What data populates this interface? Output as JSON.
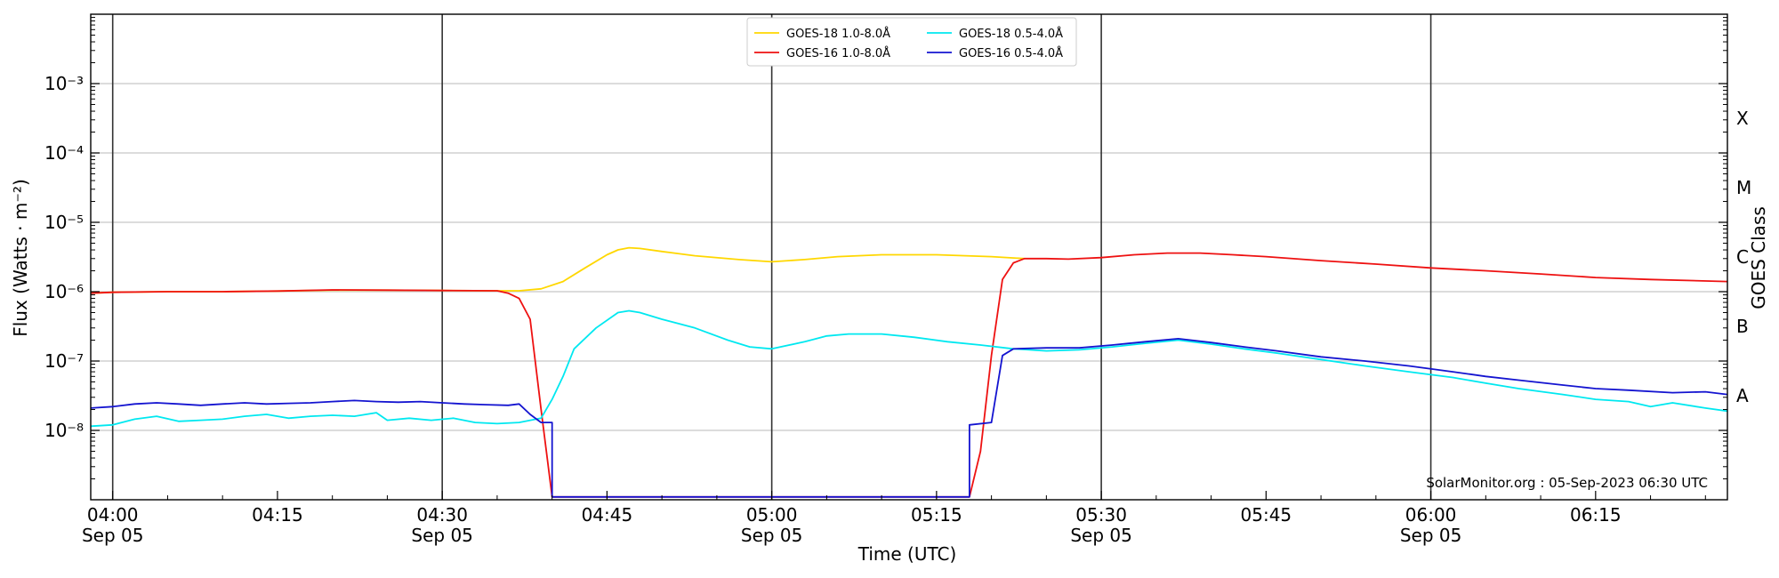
{
  "chart_data": {
    "type": "line",
    "xlabel": "Time (UTC)",
    "ylabel": "Flux (Watts · m⁻²)",
    "right_axis_label": "GOES Class",
    "y_scale": "log",
    "ylim": [
      1e-09,
      0.01
    ],
    "xlim": [
      "03:58",
      "06:27"
    ],
    "grid": "horizontal",
    "legend_position": "top-center",
    "y_ticks": [
      {
        "value": 1e-08,
        "label": "10⁻⁸"
      },
      {
        "value": 1e-07,
        "label": "10⁻⁷"
      },
      {
        "value": 1e-06,
        "label": "10⁻⁶"
      },
      {
        "value": 1e-05,
        "label": "10⁻⁵"
      },
      {
        "value": 0.0001,
        "label": "10⁻⁴"
      },
      {
        "value": 0.001,
        "label": "10⁻³"
      }
    ],
    "x_ticks": [
      {
        "time": "04:00",
        "label": "04:00",
        "date": "Sep 05"
      },
      {
        "time": "04:15",
        "label": "04:15",
        "date": ""
      },
      {
        "time": "04:30",
        "label": "04:30",
        "date": "Sep 05"
      },
      {
        "time": "04:45",
        "label": "04:45",
        "date": ""
      },
      {
        "time": "05:00",
        "label": "05:00",
        "date": "Sep 05"
      },
      {
        "time": "05:15",
        "label": "05:15",
        "date": ""
      },
      {
        "time": "05:30",
        "label": "05:30",
        "date": "Sep 05"
      },
      {
        "time": "05:45",
        "label": "05:45",
        "date": ""
      },
      {
        "time": "06:00",
        "label": "06:00",
        "date": "Sep 05"
      },
      {
        "time": "06:15",
        "label": "06:15",
        "date": ""
      }
    ],
    "vertical_lines": [
      "04:00",
      "04:30",
      "05:00",
      "05:30",
      "06:00"
    ],
    "classes": [
      {
        "label": "X",
        "value": 0.000316
      },
      {
        "label": "M",
        "value": 3.16e-05
      },
      {
        "label": "C",
        "value": 3.16e-06
      },
      {
        "label": "B",
        "value": 3.16e-07
      },
      {
        "label": "A",
        "value": 3.16e-08
      }
    ],
    "series": [
      {
        "name": "GOES-18 1.0-8.0Å",
        "color": "#ffd700",
        "points": [
          [
            "03:58",
            9.5e-07
          ],
          [
            "04:00",
            9.8e-07
          ],
          [
            "04:05",
            1e-06
          ],
          [
            "04:10",
            1e-06
          ],
          [
            "04:15",
            1.02e-06
          ],
          [
            "04:20",
            1.05e-06
          ],
          [
            "04:25",
            1.05e-06
          ],
          [
            "04:30",
            1.04e-06
          ],
          [
            "04:35",
            1.03e-06
          ],
          [
            "04:37",
            1.03e-06
          ],
          [
            "04:39",
            1.1e-06
          ],
          [
            "04:41",
            1.4e-06
          ],
          [
            "04:43",
            2.2e-06
          ],
          [
            "04:45",
            3.4e-06
          ],
          [
            "04:46",
            4e-06
          ],
          [
            "04:47",
            4.3e-06
          ],
          [
            "04:48",
            4.2e-06
          ],
          [
            "04:50",
            3.8e-06
          ],
          [
            "04:53",
            3.3e-06
          ],
          [
            "04:57",
            2.9e-06
          ],
          [
            "05:00",
            2.7e-06
          ],
          [
            "05:03",
            2.9e-06
          ],
          [
            "05:06",
            3.2e-06
          ],
          [
            "05:10",
            3.4e-06
          ],
          [
            "05:15",
            3.4e-06
          ],
          [
            "05:20",
            3.2e-06
          ],
          [
            "05:23",
            3e-06
          ]
        ]
      },
      {
        "name": "GOES-16 1.0-8.0Å",
        "color": "#ee1111",
        "points": [
          [
            "03:58",
            9.5e-07
          ],
          [
            "04:00",
            9.8e-07
          ],
          [
            "04:05",
            1e-06
          ],
          [
            "04:10",
            1e-06
          ],
          [
            "04:15",
            1.02e-06
          ],
          [
            "04:20",
            1.06e-06
          ],
          [
            "04:25",
            1.05e-06
          ],
          [
            "04:30",
            1.04e-06
          ],
          [
            "04:35",
            1.03e-06
          ],
          [
            "04:36",
            9.5e-07
          ],
          [
            "04:37",
            8e-07
          ],
          [
            "04:38",
            4e-07
          ],
          [
            "04:39",
            2e-08
          ],
          [
            "04:40",
            1.1e-09
          ],
          [
            "05:18",
            1.1e-09
          ],
          [
            "05:19",
            5e-09
          ],
          [
            "05:20",
            1.2e-07
          ],
          [
            "05:21",
            1.5e-06
          ],
          [
            "05:22",
            2.6e-06
          ],
          [
            "05:23",
            3e-06
          ],
          [
            "05:25",
            3e-06
          ],
          [
            "05:27",
            2.95e-06
          ],
          [
            "05:30",
            3.1e-06
          ],
          [
            "05:33",
            3.4e-06
          ],
          [
            "05:36",
            3.6e-06
          ],
          [
            "05:39",
            3.6e-06
          ],
          [
            "05:42",
            3.4e-06
          ],
          [
            "05:45",
            3.2e-06
          ],
          [
            "05:50",
            2.8e-06
          ],
          [
            "05:55",
            2.5e-06
          ],
          [
            "06:00",
            2.2e-06
          ],
          [
            "06:05",
            2e-06
          ],
          [
            "06:10",
            1.8e-06
          ],
          [
            "06:15",
            1.6e-06
          ],
          [
            "06:20",
            1.5e-06
          ],
          [
            "06:27",
            1.4e-06
          ]
        ]
      },
      {
        "name": "GOES-18 0.5-4.0Å",
        "color": "#00e8f0",
        "points": [
          [
            "03:58",
            1.15e-08
          ],
          [
            "04:00",
            1.2e-08
          ],
          [
            "04:02",
            1.45e-08
          ],
          [
            "04:04",
            1.6e-08
          ],
          [
            "04:06",
            1.35e-08
          ],
          [
            "04:08",
            1.4e-08
          ],
          [
            "04:10",
            1.45e-08
          ],
          [
            "04:12",
            1.6e-08
          ],
          [
            "04:14",
            1.7e-08
          ],
          [
            "04:16",
            1.5e-08
          ],
          [
            "04:18",
            1.6e-08
          ],
          [
            "04:20",
            1.65e-08
          ],
          [
            "04:22",
            1.6e-08
          ],
          [
            "04:24",
            1.8e-08
          ],
          [
            "04:25",
            1.4e-08
          ],
          [
            "04:27",
            1.5e-08
          ],
          [
            "04:29",
            1.4e-08
          ],
          [
            "04:31",
            1.5e-08
          ],
          [
            "04:33",
            1.3e-08
          ],
          [
            "04:35",
            1.25e-08
          ],
          [
            "04:37",
            1.3e-08
          ],
          [
            "04:39",
            1.5e-08
          ],
          [
            "04:40",
            2.8e-08
          ],
          [
            "04:41",
            6e-08
          ],
          [
            "04:42",
            1.5e-07
          ],
          [
            "04:44",
            3e-07
          ],
          [
            "04:46",
            5e-07
          ],
          [
            "04:47",
            5.3e-07
          ],
          [
            "04:48",
            5e-07
          ],
          [
            "04:50",
            4e-07
          ],
          [
            "04:53",
            3e-07
          ],
          [
            "04:56",
            2e-07
          ],
          [
            "04:58",
            1.6e-07
          ],
          [
            "05:00",
            1.5e-07
          ],
          [
            "05:03",
            1.9e-07
          ],
          [
            "05:05",
            2.3e-07
          ],
          [
            "05:07",
            2.45e-07
          ],
          [
            "05:10",
            2.45e-07
          ],
          [
            "05:13",
            2.2e-07
          ],
          [
            "05:16",
            1.9e-07
          ],
          [
            "05:19",
            1.7e-07
          ],
          [
            "05:22",
            1.5e-07
          ],
          [
            "05:25",
            1.4e-07
          ],
          [
            "05:28",
            1.45e-07
          ],
          [
            "05:31",
            1.6e-07
          ],
          [
            "05:34",
            1.8e-07
          ],
          [
            "05:37",
            2e-07
          ],
          [
            "05:40",
            1.75e-07
          ],
          [
            "05:43",
            1.5e-07
          ],
          [
            "05:46",
            1.3e-07
          ],
          [
            "05:50",
            1.05e-07
          ],
          [
            "05:54",
            8.5e-08
          ],
          [
            "05:58",
            7e-08
          ],
          [
            "06:02",
            5.8e-08
          ],
          [
            "06:05",
            4.8e-08
          ],
          [
            "06:08",
            4e-08
          ],
          [
            "06:12",
            3.3e-08
          ],
          [
            "06:15",
            2.8e-08
          ],
          [
            "06:18",
            2.6e-08
          ],
          [
            "06:20",
            2.2e-08
          ],
          [
            "06:22",
            2.5e-08
          ],
          [
            "06:25",
            2.1e-08
          ],
          [
            "06:27",
            1.9e-08
          ]
        ]
      },
      {
        "name": "GOES-16 0.5-4.0Å",
        "color": "#1414d0",
        "points": [
          [
            "03:58",
            2.1e-08
          ],
          [
            "04:00",
            2.2e-08
          ],
          [
            "04:02",
            2.4e-08
          ],
          [
            "04:04",
            2.5e-08
          ],
          [
            "04:06",
            2.4e-08
          ],
          [
            "04:08",
            2.3e-08
          ],
          [
            "04:10",
            2.4e-08
          ],
          [
            "04:12",
            2.5e-08
          ],
          [
            "04:14",
            2.4e-08
          ],
          [
            "04:16",
            2.45e-08
          ],
          [
            "04:18",
            2.5e-08
          ],
          [
            "04:20",
            2.6e-08
          ],
          [
            "04:22",
            2.7e-08
          ],
          [
            "04:24",
            2.6e-08
          ],
          [
            "04:26",
            2.55e-08
          ],
          [
            "04:28",
            2.6e-08
          ],
          [
            "04:30",
            2.5e-08
          ],
          [
            "04:32",
            2.4e-08
          ],
          [
            "04:34",
            2.35e-08
          ],
          [
            "04:36",
            2.3e-08
          ],
          [
            "04:37",
            2.4e-08
          ],
          [
            "04:38",
            1.7e-08
          ],
          [
            "04:39",
            1.3e-08
          ],
          [
            "04:40",
            1.3e-08
          ],
          [
            "04:40",
            1.1e-09
          ],
          [
            "05:18",
            1.1e-09
          ],
          [
            "05:18",
            1.2e-08
          ],
          [
            "05:20",
            1.3e-08
          ],
          [
            "05:21",
            1.2e-07
          ],
          [
            "05:22",
            1.5e-07
          ],
          [
            "05:25",
            1.55e-07
          ],
          [
            "05:28",
            1.55e-07
          ],
          [
            "05:31",
            1.7e-07
          ],
          [
            "05:34",
            1.9e-07
          ],
          [
            "05:37",
            2.1e-07
          ],
          [
            "05:40",
            1.85e-07
          ],
          [
            "05:43",
            1.6e-07
          ],
          [
            "05:46",
            1.4e-07
          ],
          [
            "05:50",
            1.15e-07
          ],
          [
            "05:54",
            1e-07
          ],
          [
            "05:58",
            8.5e-08
          ],
          [
            "06:02",
            7e-08
          ],
          [
            "06:05",
            6e-08
          ],
          [
            "06:08",
            5.3e-08
          ],
          [
            "06:12",
            4.5e-08
          ],
          [
            "06:15",
            4e-08
          ],
          [
            "06:18",
            3.8e-08
          ],
          [
            "06:22",
            3.5e-08
          ],
          [
            "06:25",
            3.6e-08
          ],
          [
            "06:27",
            3.3e-08
          ]
        ]
      }
    ],
    "legend_order": [
      "GOES-18 1.0-8.0Å",
      "GOES-16 1.0-8.0Å",
      "GOES-18 0.5-4.0Å",
      "GOES-16 0.5-4.0Å"
    ],
    "annotation": "SolarMonitor.org : 05-Sep-2023 06:30 UTC"
  }
}
